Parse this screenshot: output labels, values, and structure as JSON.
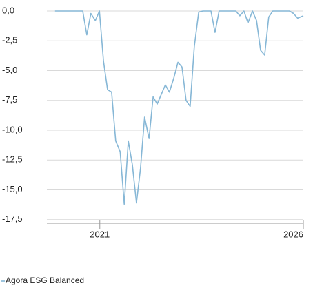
{
  "chart_data": {
    "type": "line",
    "x": [
      2019.9,
      2020.58,
      2020.68,
      2020.78,
      2020.89,
      2020.99,
      2021.09,
      2021.19,
      2021.29,
      2021.39,
      2021.5,
      2021.6,
      2021.7,
      2021.8,
      2021.9,
      2022.0,
      2022.1,
      2022.21,
      2022.31,
      2022.41,
      2022.51,
      2022.61,
      2022.71,
      2022.82,
      2022.92,
      2023.02,
      2023.12,
      2023.22,
      2023.32,
      2023.43,
      2023.53,
      2023.73,
      2023.83,
      2023.93,
      2024.34,
      2024.44,
      2024.54,
      2024.64,
      2024.75,
      2024.85,
      2024.95,
      2025.05,
      2025.15,
      2025.25,
      2025.66,
      2025.76,
      2025.86,
      2026.0
    ],
    "series": [
      {
        "name": "Agora ESG Balanced",
        "color": "#86b7d6",
        "values": [
          0,
          0,
          -2.0,
          -0.2,
          -0.8,
          0,
          -4.2,
          -6.6,
          -6.8,
          -10.9,
          -11.8,
          -16.2,
          -10.9,
          -12.9,
          -16.1,
          -13.2,
          -8.9,
          -10.7,
          -7.2,
          -7.8,
          -7.0,
          -6.2,
          -6.8,
          -5.6,
          -4.3,
          -4.7,
          -7.5,
          -8.0,
          -3.0,
          -0.1,
          0,
          0,
          -1.8,
          0,
          0,
          -0.4,
          0,
          -1.0,
          0,
          -0.8,
          -3.3,
          -3.7,
          -0.5,
          0,
          0,
          -0.2,
          -0.6,
          -0.4
        ]
      }
    ],
    "xlim": [
      2019.7,
      2026.0
    ],
    "xticks": [
      2021,
      2026
    ],
    "ylim": [
      -17.8,
      0
    ],
    "yticks": [
      {
        "value": 0,
        "label": "0,0"
      },
      {
        "value": -2.5,
        "label": "-2,5"
      },
      {
        "value": -5,
        "label": "-5,0"
      },
      {
        "value": -7.5,
        "label": "-7,5"
      },
      {
        "value": -10,
        "label": "-10,0"
      },
      {
        "value": -12.5,
        "label": "-12,5"
      },
      {
        "value": -15,
        "label": "-15,0"
      },
      {
        "value": -17.5,
        "label": "-17,5"
      }
    ],
    "grid": true,
    "legend": "bottom-left"
  }
}
